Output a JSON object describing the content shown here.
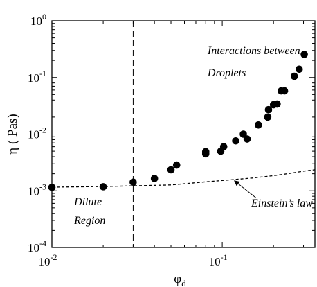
{
  "chart_data": {
    "type": "scatter",
    "title": "",
    "xlabel": "φ_d",
    "ylabel": "η ( Pas)",
    "x_scale": "log",
    "y_scale": "log",
    "xlim": [
      0.01,
      0.35
    ],
    "ylim": [
      0.0001,
      1
    ],
    "grid": false,
    "x_ticks": [
      {
        "value": 0.01,
        "base": "10",
        "exp": "-2"
      },
      {
        "value": 0.1,
        "base": "10",
        "exp": "-1"
      }
    ],
    "y_ticks": [
      {
        "value": 0.0001,
        "base": "10",
        "exp": "-4"
      },
      {
        "value": 0.001,
        "base": "10",
        "exp": "-3"
      },
      {
        "value": 0.01,
        "base": "10",
        "exp": "-2"
      },
      {
        "value": 0.1,
        "base": "10",
        "exp": "-1"
      },
      {
        "value": 1,
        "base": "10",
        "exp": "0"
      }
    ],
    "series": [
      {
        "marker": "filled-circle",
        "color": "#000000",
        "points": [
          {
            "x": 0.01,
            "y": 0.00115
          },
          {
            "x": 0.02,
            "y": 0.00118
          },
          {
            "x": 0.03,
            "y": 0.00142
          },
          {
            "x": 0.04,
            "y": 0.00165
          },
          {
            "x": 0.05,
            "y": 0.00235
          },
          {
            "x": 0.054,
            "y": 0.00285
          },
          {
            "x": 0.08,
            "y": 0.0045
          },
          {
            "x": 0.08,
            "y": 0.0049
          },
          {
            "x": 0.098,
            "y": 0.005
          },
          {
            "x": 0.102,
            "y": 0.006
          },
          {
            "x": 0.12,
            "y": 0.0076
          },
          {
            "x": 0.133,
            "y": 0.01
          },
          {
            "x": 0.14,
            "y": 0.0082
          },
          {
            "x": 0.163,
            "y": 0.0145
          },
          {
            "x": 0.185,
            "y": 0.02
          },
          {
            "x": 0.187,
            "y": 0.027
          },
          {
            "x": 0.2,
            "y": 0.033
          },
          {
            "x": 0.21,
            "y": 0.034
          },
          {
            "x": 0.222,
            "y": 0.058
          },
          {
            "x": 0.232,
            "y": 0.058
          },
          {
            "x": 0.265,
            "y": 0.105
          },
          {
            "x": 0.283,
            "y": 0.14
          },
          {
            "x": 0.303,
            "y": 0.255
          }
        ]
      },
      {
        "style": "dashed-line",
        "color": "#000000",
        "fit": "Einstein's law",
        "points": [
          {
            "x": 0.01,
            "y": 0.00116
          },
          {
            "x": 0.02,
            "y": 0.00119
          },
          {
            "x": 0.05,
            "y": 0.00127
          },
          {
            "x": 0.08,
            "y": 0.00144
          },
          {
            "x": 0.1,
            "y": 0.00152
          },
          {
            "x": 0.15,
            "y": 0.00168
          },
          {
            "x": 0.2,
            "y": 0.00185
          },
          {
            "x": 0.25,
            "y": 0.00203
          },
          {
            "x": 0.3,
            "y": 0.00222
          },
          {
            "x": 0.35,
            "y": 0.00235
          }
        ]
      }
    ],
    "reference_lines": [
      {
        "orientation": "vertical",
        "x": 0.03,
        "style": "long-dash"
      }
    ],
    "annotations": [
      {
        "name": "annotation-interactions-line1",
        "text": "Interactions between",
        "x": 0.082,
        "y": 0.26
      },
      {
        "name": "annotation-interactions-line2",
        "text": "Droplets",
        "x": 0.082,
        "y": 0.105
      },
      {
        "name": "annotation-dilute",
        "text": "Dilute",
        "x": 0.0135,
        "y": 0.00056
      },
      {
        "name": "annotation-region",
        "text": "Region",
        "x": 0.0135,
        "y": 0.00026
      },
      {
        "name": "annotation-einstein",
        "text": "Einstein’s law",
        "x": 0.148,
        "y": 0.00053
      }
    ],
    "arrow": {
      "from": {
        "x": 0.158,
        "y": 0.00075
      },
      "to": {
        "x": 0.118,
        "y": 0.0015
      }
    }
  }
}
